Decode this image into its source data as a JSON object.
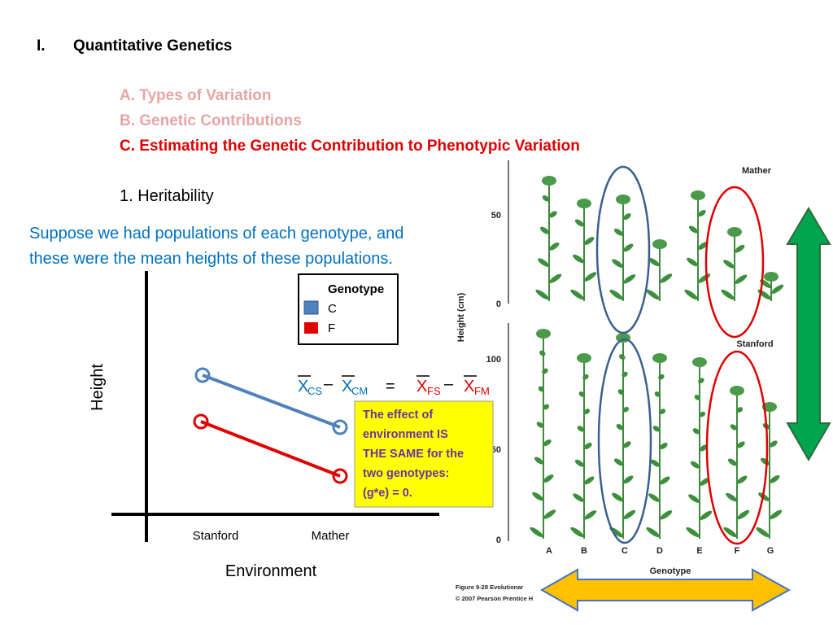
{
  "outline": {
    "numeral": "I.",
    "heading": "Quantitative Genetics",
    "items": [
      "A.  Types of Variation",
      "B. Genetic Contributions",
      "C. Estimating the Genetic Contribution to Phenotypic Variation"
    ],
    "sub": "1. Heritability"
  },
  "intro": [
    "Suppose we had populations of each genotype, and",
    "these were the mean heights of these populations."
  ],
  "graph": {
    "y_label": "Height",
    "x_label": "Environment",
    "x_categories": [
      "Stanford",
      "Mather"
    ],
    "legend": {
      "title": "Genotype",
      "entries": [
        "C",
        "F"
      ]
    }
  },
  "equation": {
    "terms": [
      {
        "base": "X",
        "sub": "CS"
      },
      {
        "base": "X",
        "sub": "CM"
      },
      {
        "base": "X",
        "sub": "FS"
      },
      {
        "base": "X",
        "sub": "FM"
      }
    ],
    "operators": [
      "–",
      "=",
      "–"
    ]
  },
  "callout": [
    "The effect of",
    "environment IS",
    "THE SAME for the",
    "two genotypes:",
    "(g*e) = 0."
  ],
  "figure": {
    "panels": [
      "Mather",
      "Stanford"
    ],
    "y_axis_label": "Height (cm)",
    "mather_ticks": [
      "50",
      "0"
    ],
    "stanford_ticks": [
      "100",
      "50",
      "0"
    ],
    "genotypes": [
      "A",
      "B",
      "C",
      "D",
      "E",
      "F",
      "G"
    ],
    "x_axis_label": "Genotype",
    "caption": [
      "Figure 9-28  Evolutionar",
      "© 2007 Pearson Prentice H"
    ]
  }
}
